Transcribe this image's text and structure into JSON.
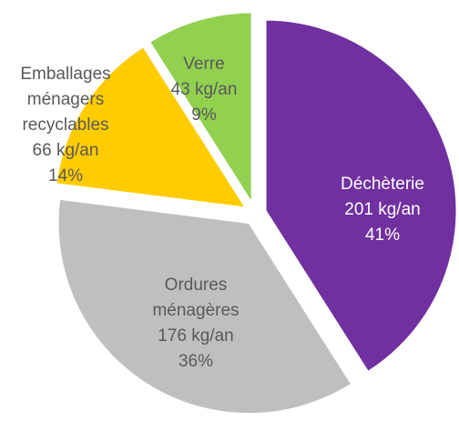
{
  "chart_data": {
    "type": "pie",
    "categories": [
      "Déchèterie",
      "Ordures ménagères",
      "Emballages ménagers recyclables",
      "Verre"
    ],
    "values": [
      41,
      36,
      14,
      9
    ],
    "value_labels": [
      "41%",
      "36%",
      "14%",
      "9%"
    ],
    "amounts": [
      201,
      176,
      66,
      43
    ],
    "amount_labels": [
      "201 kg/an",
      "176 kg/an",
      "66 kg/an",
      "43 kg/an"
    ],
    "colors": [
      "#7030a0",
      "#bfbfbf",
      "#ffcc00",
      "#92d050"
    ],
    "label_colors": [
      "#ffffff",
      "#595959",
      "#595959",
      "#595959"
    ]
  }
}
